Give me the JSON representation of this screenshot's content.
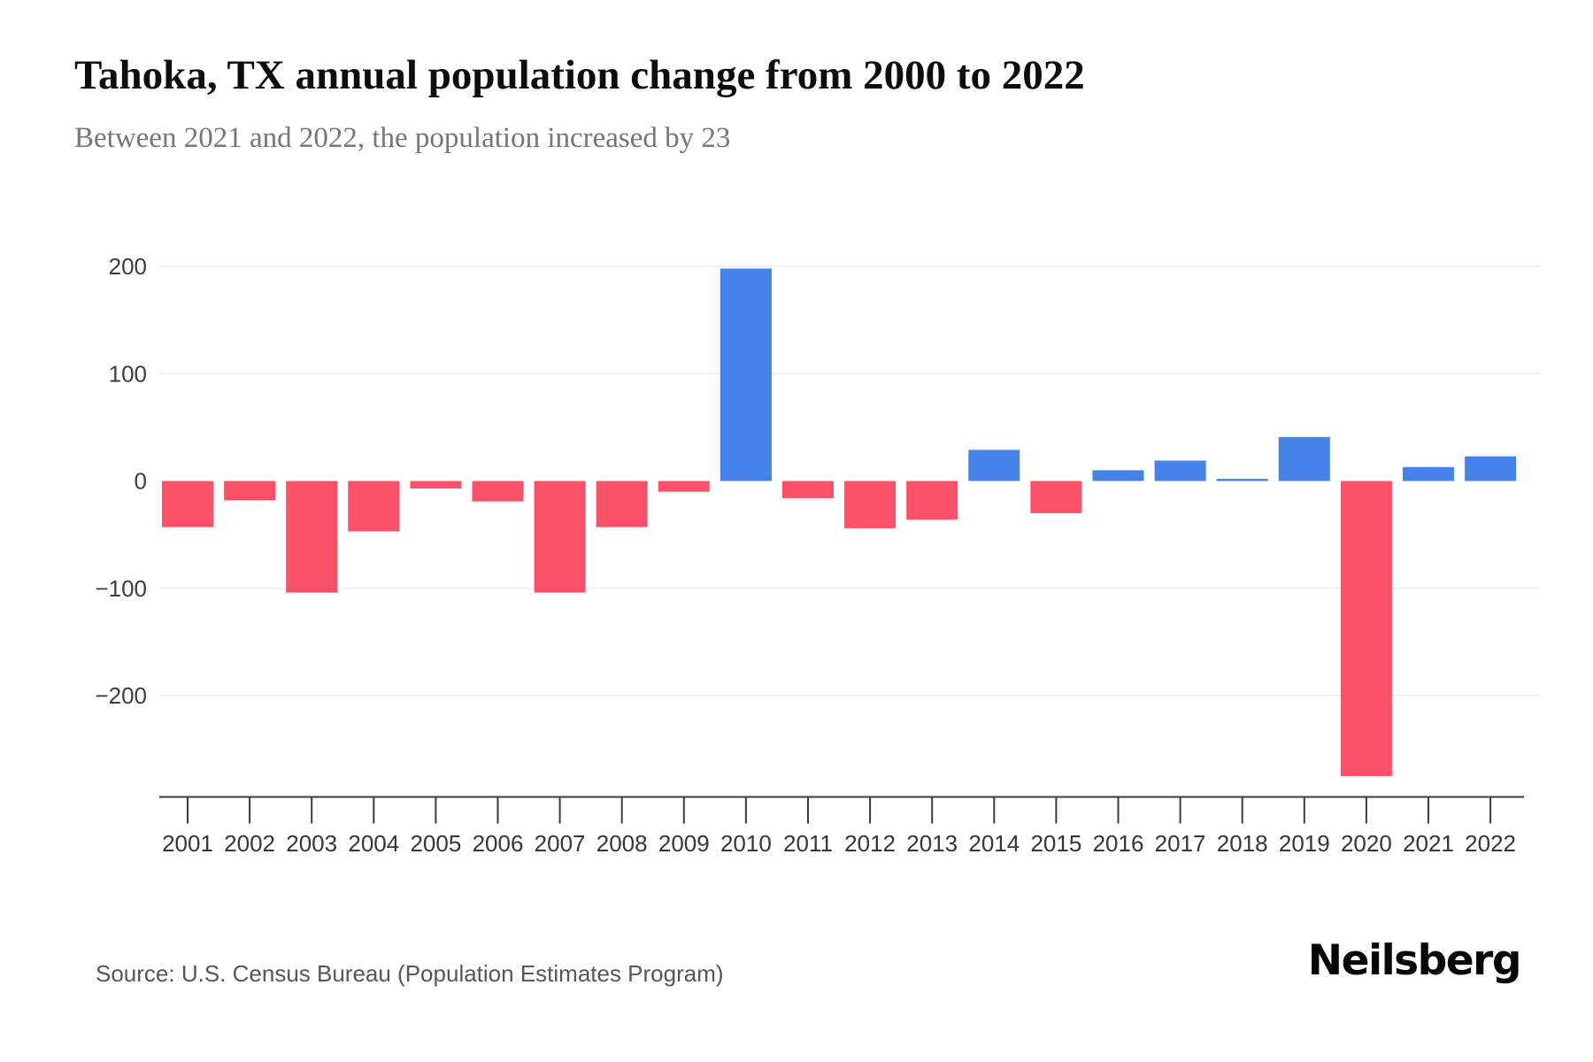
{
  "header": {
    "title": "Tahoka, TX annual population change from 2000 to 2022",
    "subtitle": "Between 2021 and 2022, the population increased by 23"
  },
  "footer": {
    "source": "Source: U.S. Census Bureau (Population Estimates Program)",
    "brand": "Neilsberg"
  },
  "chart_data": {
    "type": "bar",
    "title": "Tahoka, TX annual population change from 2000 to 2022",
    "xlabel": "",
    "ylabel": "",
    "categories": [
      "2001",
      "2002",
      "2003",
      "2004",
      "2005",
      "2006",
      "2007",
      "2008",
      "2009",
      "2010",
      "2011",
      "2012",
      "2013",
      "2014",
      "2015",
      "2016",
      "2017",
      "2018",
      "2019",
      "2020",
      "2021",
      "2022"
    ],
    "values": [
      -43,
      -18,
      -104,
      -47,
      -7,
      -19,
      -104,
      -43,
      -10,
      198,
      -16,
      -44,
      -36,
      29,
      -30,
      10,
      19,
      2,
      41,
      -275,
      13,
      23
    ],
    "yticks": [
      200,
      100,
      0,
      -100,
      -200
    ],
    "ylim": [
      -300,
      220
    ],
    "grid": true,
    "legend": false,
    "colors": {
      "positive": "#4583ea",
      "negative": "#fa5168",
      "gridline": "#ededed",
      "axis": "#3b3b3b"
    }
  }
}
